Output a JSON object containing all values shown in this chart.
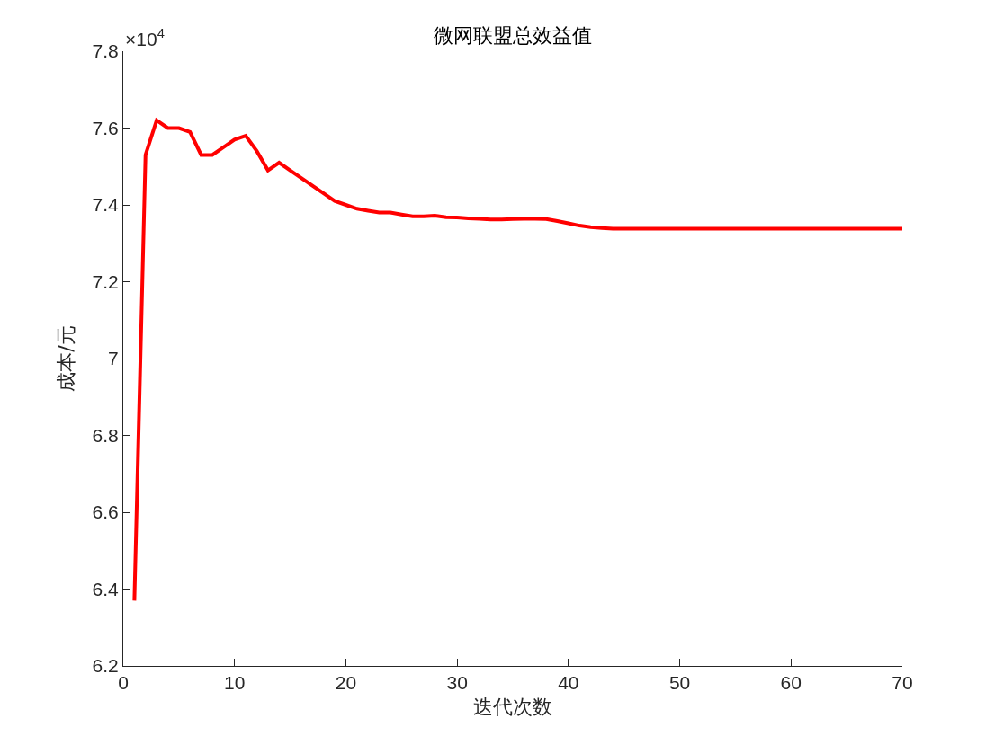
{
  "chart_data": {
    "type": "line",
    "title": "微网联盟总效益值",
    "xlabel": "迭代次数",
    "ylabel": "成本/元",
    "annotations": [
      "×10$^{4}$"
    ],
    "x": [
      1,
      2,
      3,
      4,
      5,
      6,
      7,
      8,
      9,
      10,
      11,
      12,
      13,
      14,
      15,
      16,
      17,
      18,
      19,
      20,
      21,
      22,
      23,
      24,
      25,
      26,
      27,
      28,
      29,
      30,
      31,
      32,
      33,
      34,
      35,
      36,
      37,
      38,
      39,
      40,
      41,
      42,
      43,
      44,
      45,
      46,
      47,
      48,
      49,
      50,
      51,
      52,
      53,
      54,
      55,
      56,
      57,
      58,
      59,
      60,
      61,
      62,
      63,
      64,
      65,
      66,
      67,
      68,
      69,
      70
    ],
    "series": [
      {
        "color": "#ff0000",
        "values": [
          6.37,
          7.53,
          7.62,
          7.6,
          7.6,
          7.59,
          7.53,
          7.53,
          7.55,
          7.57,
          7.58,
          7.54,
          7.49,
          7.51,
          7.49,
          7.47,
          7.45,
          7.43,
          7.41,
          7.4,
          7.39,
          7.385,
          7.38,
          7.38,
          7.375,
          7.37,
          7.37,
          7.372,
          7.368,
          7.367,
          7.365,
          7.364,
          7.362,
          7.362,
          7.363,
          7.364,
          7.364,
          7.363,
          7.358,
          7.352,
          7.346,
          7.342,
          7.34,
          7.338,
          7.338,
          7.338,
          7.338,
          7.338,
          7.338,
          7.338,
          7.338,
          7.338,
          7.338,
          7.338,
          7.338,
          7.338,
          7.338,
          7.338,
          7.338,
          7.338,
          7.338,
          7.338,
          7.338,
          7.338,
          7.338,
          7.338,
          7.338,
          7.338,
          7.338,
          7.338
        ]
      }
    ],
    "xlim": [
      0,
      70
    ],
    "xticks": [
      0,
      10,
      20,
      30,
      40,
      50,
      60,
      70
    ],
    "ylim": [
      6.2,
      7.8
    ],
    "yticks": [
      6.2,
      6.4,
      6.6,
      6.8,
      7,
      7.2,
      7.4,
      7.6,
      7.8
    ],
    "grid": false,
    "marker": "none",
    "line_style": "solid"
  }
}
